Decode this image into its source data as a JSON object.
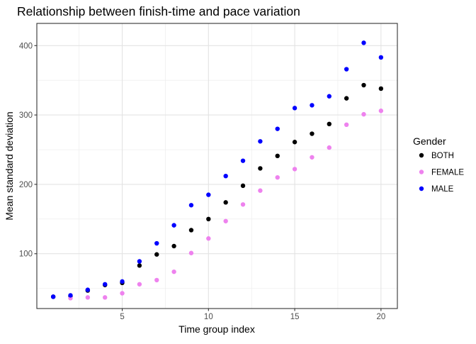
{
  "chart_data": {
    "type": "scatter",
    "title": "Relationship between finish-time and pace variation",
    "xlabel": "Time group index",
    "ylabel": "Mean standard deviation",
    "xlim": [
      0.05,
      20.95
    ],
    "ylim": [
      21,
      432
    ],
    "x_ticks": [
      5,
      10,
      15,
      20
    ],
    "y_ticks": [
      100,
      200,
      300,
      400
    ],
    "x_minor": [
      2.5,
      7.5,
      12.5,
      17.5
    ],
    "y_minor": [
      50,
      150,
      250,
      350
    ],
    "grid": true,
    "legend_title": "Gender",
    "legend_position": "right",
    "series": [
      {
        "name": "BOTH",
        "color": "#000000",
        "x": [
          1,
          2,
          3,
          4,
          5,
          6,
          7,
          8,
          9,
          10,
          11,
          12,
          13,
          14,
          15,
          16,
          17,
          18,
          19,
          20
        ],
        "y": [
          38,
          39,
          47,
          55,
          58,
          83,
          99,
          111,
          134,
          150,
          174,
          198,
          223,
          241,
          261,
          273,
          287,
          324,
          343,
          338
        ]
      },
      {
        "name": "FEMALE",
        "color": "#EE82EE",
        "x": [
          2,
          3,
          4,
          5,
          6,
          7,
          8,
          9,
          10,
          11,
          12,
          13,
          14,
          15,
          16,
          17,
          18,
          19,
          20
        ],
        "y": [
          36,
          37,
          37,
          43,
          56,
          62,
          74,
          101,
          122,
          147,
          171,
          191,
          210,
          222,
          239,
          253,
          286,
          301,
          306
        ]
      },
      {
        "name": "MALE",
        "color": "#0000FF",
        "x": [
          1,
          2,
          3,
          4,
          5,
          6,
          7,
          8,
          9,
          10,
          11,
          12,
          13,
          14,
          15,
          16,
          17,
          18,
          19,
          20
        ],
        "y": [
          38,
          40,
          48,
          56,
          60,
          89,
          115,
          141,
          170,
          185,
          212,
          234,
          262,
          280,
          310,
          314,
          327,
          366,
          404,
          383
        ]
      }
    ]
  }
}
